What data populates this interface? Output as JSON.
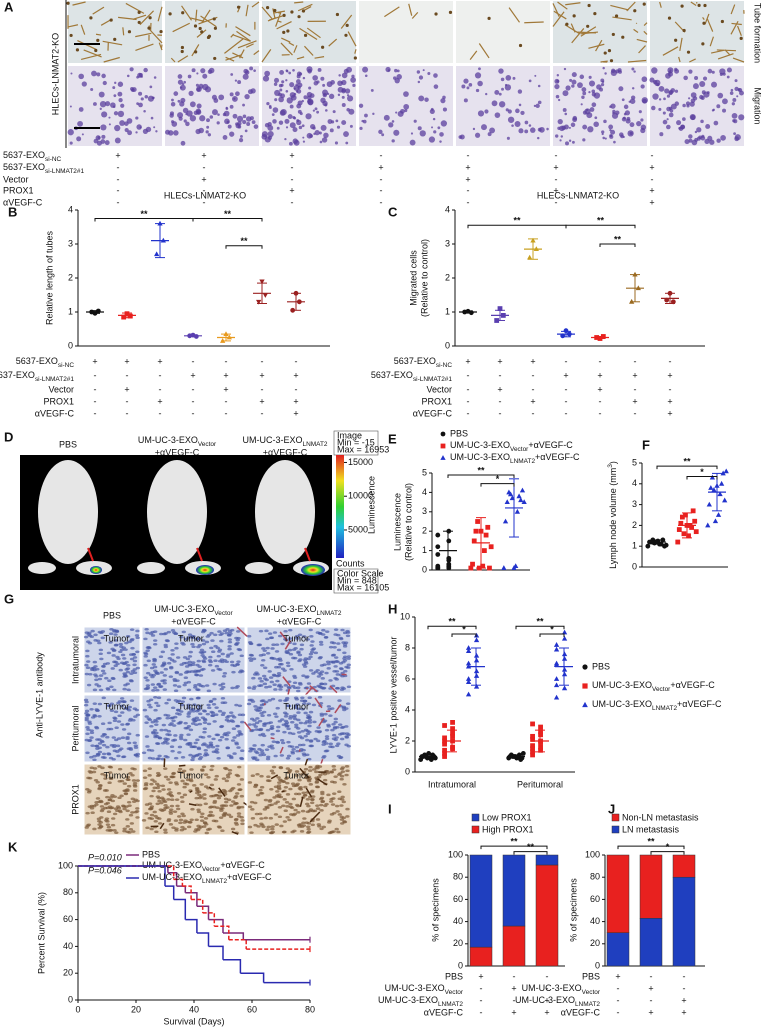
{
  "panel_a": {
    "label": "A",
    "side_label": "HLECs-LNMAT2-KO",
    "row_labels": [
      "Tube formation",
      "Migration"
    ],
    "conditions": {
      "rows": [
        {
          "text": "5637-EXO",
          "sub": "si-NC"
        },
        {
          "text": "5637-EXO",
          "sub": "si-LNMAT2#1"
        },
        "Vector",
        "PROX1",
        "αVEGF-C"
      ],
      "signs": [
        [
          "+",
          "+",
          "+",
          "-",
          "-",
          "-",
          "-"
        ],
        [
          "-",
          "-",
          "-",
          "+",
          "+",
          "+",
          "+"
        ],
        [
          "-",
          "+",
          "-",
          "-",
          "+",
          "-",
          "-"
        ],
        [
          "-",
          "-",
          "+",
          "-",
          "-",
          "+",
          "+"
        ],
        [
          "-",
          "-",
          "-",
          "-",
          "-",
          "-",
          "+"
        ]
      ]
    }
  },
  "panel_d": {
    "label": "D",
    "groups": [
      [
        "PBS"
      ],
      [
        {
          "text": "UM-UC-3-EXO",
          "sub": "Vector"
        },
        "+αVEGF-C"
      ],
      [
        {
          "text": "UM-UC-3-EXO",
          "sub": "LNMAT2"
        },
        "+αVEGF-C"
      ]
    ],
    "image_info": [
      "Image",
      "Min = -15",
      "Max = 16953"
    ],
    "scale_title": "Luminescence",
    "scale_ticks": [
      5000,
      10000,
      15000
    ],
    "counts": "Counts",
    "color_scale_title": "Color Scale",
    "scale_min": {
      "value": 848,
      "label": "Min = 848"
    },
    "scale_max": {
      "value": 16105,
      "label": "Max = 16105"
    }
  },
  "panel_g": {
    "label": "G",
    "groups": [
      [
        "PBS"
      ],
      [
        {
          "text": "UM-UC-3-EXO",
          "sub": "Vector"
        },
        "+αVEGF-C"
      ],
      [
        {
          "text": "UM-UC-3-EXO",
          "sub": "LNMAT2"
        },
        "+αVEGF-C"
      ]
    ],
    "antibody": "Anti-LYVE-1 antibody",
    "rows": [
      "Intratumoral",
      "Peritumoral",
      "PROX1"
    ],
    "region": "Tumor"
  },
  "chart_data": [
    {
      "type": "dot",
      "label": "B",
      "title": "HLECs-LNMAT2-KO",
      "ylabel": [
        "Relative length of tubes"
      ],
      "ylim": [
        0,
        4
      ],
      "yticks": [
        0,
        1,
        2,
        3,
        4
      ],
      "groups": [
        {
          "color": "#111111",
          "marker": "circle",
          "values": [
            1.0,
            0.96,
            1.03
          ],
          "mean": 1.0,
          "sd": 0.04
        },
        {
          "color": "#e8211f",
          "marker": "square",
          "values": [
            0.85,
            0.95,
            0.88
          ],
          "mean": 0.9,
          "sd": 0.07
        },
        {
          "color": "#2233cc",
          "marker": "triangle",
          "values": [
            2.7,
            3.6,
            3.1
          ],
          "mean": 3.1,
          "sd": 0.5
        },
        {
          "color": "#5a3fb0",
          "marker": "circle",
          "values": [
            0.3,
            0.32,
            0.28
          ],
          "mean": 0.3,
          "sd": 0.02
        },
        {
          "color": "#e89a1f",
          "marker": "triangle",
          "values": [
            0.15,
            0.35,
            0.25
          ],
          "mean": 0.25,
          "sd": 0.1
        },
        {
          "color": "#9b2020",
          "marker": "tri-down",
          "values": [
            1.3,
            1.9,
            1.5
          ],
          "mean": 1.55,
          "sd": 0.3
        },
        {
          "color": "#9b2020",
          "marker": "circle",
          "values": [
            1.05,
            1.55,
            1.3
          ],
          "mean": 1.3,
          "sd": 0.25
        }
      ],
      "significance": [
        "**",
        "**",
        "**"
      ],
      "conditions": {
        "rows": [
          {
            "text": "5637-EXO",
            "sub": "si-NC"
          },
          {
            "text": "5637-EXO",
            "sub": "si-LNMAT2#1"
          },
          "Vector",
          "PROX1",
          "αVEGF-C"
        ],
        "signs": [
          [
            "+",
            "+",
            "+",
            "-",
            "-",
            "-",
            "-"
          ],
          [
            "-",
            "-",
            "-",
            "+",
            "+",
            "+",
            "+"
          ],
          [
            "-",
            "+",
            "-",
            "-",
            "+",
            "-",
            "-"
          ],
          [
            "-",
            "-",
            "+",
            "-",
            "-",
            "+",
            "+"
          ],
          [
            "-",
            "-",
            "-",
            "-",
            "-",
            "-",
            "+"
          ]
        ]
      }
    },
    {
      "type": "dot",
      "label": "C",
      "title": "HLECs-LNMAT2-KO",
      "ylabel": [
        "Migrated cells",
        "(Relative to control)"
      ],
      "ylim": [
        0,
        4
      ],
      "yticks": [
        0,
        1,
        2,
        3,
        4
      ],
      "groups": [
        {
          "color": "#111111",
          "marker": "circle",
          "values": [
            1.0,
            1.02,
            0.98
          ],
          "mean": 1.0,
          "sd": 0.03
        },
        {
          "color": "#5a3fb0",
          "marker": "square",
          "values": [
            0.75,
            1.1,
            0.9
          ],
          "mean": 0.9,
          "sd": 0.15
        },
        {
          "color": "#c8a020",
          "marker": "triangle",
          "values": [
            2.6,
            3.1,
            2.85
          ],
          "mean": 2.85,
          "sd": 0.3
        },
        {
          "color": "#2233cc",
          "marker": "circle",
          "values": [
            0.3,
            0.45,
            0.35
          ],
          "mean": 0.35,
          "sd": 0.08
        },
        {
          "color": "#e8211f",
          "marker": "square",
          "values": [
            0.25,
            0.22,
            0.28
          ],
          "mean": 0.25,
          "sd": 0.03
        },
        {
          "color": "#9b6a20",
          "marker": "triangle",
          "values": [
            1.3,
            2.1,
            1.7
          ],
          "mean": 1.7,
          "sd": 0.4
        },
        {
          "color": "#9b2020",
          "marker": "circle",
          "values": [
            1.35,
            1.55,
            1.3
          ],
          "mean": 1.4,
          "sd": 0.15
        }
      ],
      "significance": [
        "**",
        "**",
        "**"
      ],
      "conditions": {
        "rows": [
          {
            "text": "5637-EXO",
            "sub": "si-NC"
          },
          {
            "text": "5637-EXO",
            "sub": "si-LNMAT2#1"
          },
          "Vector",
          "PROX1",
          "αVEGF-C"
        ],
        "signs": [
          [
            "+",
            "+",
            "+",
            "-",
            "-",
            "-",
            "-"
          ],
          [
            "-",
            "-",
            "-",
            "+",
            "+",
            "+",
            "+"
          ],
          [
            "-",
            "+",
            "-",
            "-",
            "+",
            "-",
            "-"
          ],
          [
            "-",
            "-",
            "+",
            "-",
            "-",
            "+",
            "+"
          ],
          [
            "-",
            "-",
            "-",
            "-",
            "-",
            "-",
            "+"
          ]
        ]
      }
    },
    {
      "type": "dot",
      "label": "E",
      "ylabel": [
        "Luminescence",
        "(Relative to control)"
      ],
      "ylim": [
        0,
        5
      ],
      "yticks": [
        0,
        1,
        2,
        3,
        4,
        5
      ],
      "groups": [
        {
          "name": "PBS",
          "color": "#111111",
          "marker": "circle",
          "values": [
            0.1,
            0.2,
            0.1,
            0.5,
            0.8,
            1.5,
            1.8,
            2.0,
            0.1,
            0.3,
            1.2,
            0.6,
            0.2,
            0.1
          ],
          "mean": 1.0,
          "sd": 1.0
        },
        {
          "name": {
            "text": "UM-UC-3-EXO",
            "sub": "Vector",
            "suffix": "+αVEGF-C"
          },
          "color": "#e8211f",
          "marker": "square",
          "values": [
            0.1,
            0.2,
            0.3,
            1.0,
            1.5,
            1.8,
            2.0,
            2.2,
            2.5,
            0.1,
            0.1,
            1.2,
            2.0
          ],
          "mean": 1.4,
          "sd": 1.3
        },
        {
          "name": {
            "text": "UM-UC-3-EXO",
            "sub": "LNMAT2",
            "suffix": "+αVEGF-C"
          },
          "color": "#2233cc",
          "marker": "triangle",
          "values": [
            0.1,
            0.2,
            2.5,
            3.0,
            3.5,
            3.8,
            4.0,
            3.6,
            3.9,
            4.1,
            3.7,
            3.5,
            0.1
          ],
          "mean": 3.2,
          "sd": 1.5
        }
      ],
      "significance": [
        "**",
        "*"
      ]
    },
    {
      "type": "dot",
      "label": "F",
      "ylabel": [
        {
          "text": "Lymph node volume (mm",
          "sup": "3",
          "suffix": ")"
        }
      ],
      "ylim": [
        0,
        5
      ],
      "yticks": [
        0,
        1,
        2,
        3,
        4,
        5
      ],
      "groups": [
        {
          "color": "#111111",
          "marker": "circle",
          "values": [
            1.0,
            1.1,
            1.2,
            1.3,
            1.15,
            1.05,
            1.25,
            1.2,
            1.1,
            1.3,
            1.0,
            1.2
          ],
          "mean": 1.2,
          "sd": 0.1
        },
        {
          "color": "#e8211f",
          "marker": "square",
          "values": [
            1.2,
            1.5,
            1.8,
            2.0,
            2.1,
            1.9,
            2.4,
            2.7,
            1.6,
            2.2,
            2.5,
            1.7,
            2.0
          ],
          "mean": 2.0,
          "sd": 0.6
        },
        {
          "color": "#2233cc",
          "marker": "triangle",
          "values": [
            2.0,
            2.5,
            3.0,
            3.5,
            3.8,
            4.0,
            4.3,
            4.5,
            3.7,
            3.2,
            2.2,
            4.6,
            3.9
          ],
          "mean": 3.6,
          "sd": 0.9
        }
      ],
      "significance": [
        "**",
        "*"
      ]
    },
    {
      "type": "cluster",
      "label": "H",
      "ylabel": [
        "LYVE-1 positive vessel/tumor"
      ],
      "ylim": [
        0,
        10
      ],
      "yticks": [
        0,
        2,
        4,
        6,
        8,
        10
      ],
      "categories": [
        "Intratumoral",
        "Peritumoral"
      ],
      "series": [
        {
          "name": "PBS",
          "color": "#111111",
          "marker": "circle",
          "values": [
            [
              0.8,
              0.9,
              1.0,
              1.1,
              1.0,
              0.9,
              1.2,
              1.0,
              0.8,
              1.1,
              1.0,
              0.9
            ],
            [
              0.9,
              1.0,
              1.1,
              0.8,
              1.0,
              1.2,
              0.9,
              1.0,
              1.1,
              1.0,
              0.9,
              1.0
            ]
          ],
          "mean": [
            1.0,
            1.0
          ],
          "sd": [
            0.1,
            0.1
          ]
        },
        {
          "name": {
            "text": "UM-UC-3-EXO",
            "sub": "Vector",
            "suffix": "+αVEGF-C"
          },
          "color": "#e8211f",
          "marker": "square",
          "values": [
            [
              1.0,
              1.5,
              1.8,
              2.0,
              2.2,
              2.5,
              1.2,
              2.8,
              3.0,
              1.6,
              2.0,
              2.3,
              1.4,
              3.2
            ],
            [
              1.1,
              1.4,
              1.7,
              2.0,
              2.3,
              2.6,
              1.3,
              2.9,
              3.1,
              1.6,
              2.1,
              2.4,
              1.5,
              1.9
            ]
          ],
          "mean": [
            2.0,
            2.0
          ],
          "sd": [
            0.7,
            0.7
          ]
        },
        {
          "name": {
            "text": "UM-UC-3-EXO",
            "sub": "LNMAT2",
            "suffix": "+αVEGF-C"
          },
          "color": "#2233cc",
          "marker": "triangle",
          "values": [
            [
              5.0,
              5.5,
              6.0,
              6.5,
              7.0,
              7.5,
              8.0,
              8.5,
              6.8,
              7.2,
              5.8,
              6.2,
              7.8,
              8.8
            ],
            [
              4.8,
              5.4,
              6.0,
              6.6,
              7.0,
              7.6,
              8.2,
              8.6,
              6.9,
              7.3,
              5.6,
              6.3,
              7.9,
              9.0
            ]
          ],
          "mean": [
            6.8,
            6.8
          ],
          "sd": [
            1.2,
            1.2
          ]
        }
      ],
      "significance": [
        "**",
        "*",
        "**",
        "*"
      ]
    },
    {
      "type": "stacked",
      "label": "I",
      "ylabel": [
        "% of specimens"
      ],
      "ylim": [
        0,
        100
      ],
      "yticks": [
        0,
        20,
        40,
        60,
        80,
        100
      ],
      "series": [
        {
          "name": "High PROX1",
          "color": "#e8211f",
          "values": [
            17,
            36,
            91
          ]
        },
        {
          "name": "Low PROX1",
          "color": "#1f3fbf",
          "values": [
            83,
            64,
            9
          ]
        }
      ],
      "significance": [
        "**",
        "**"
      ],
      "conditions": {
        "rows": [
          "PBS",
          {
            "text": "UM-UC-3-EXO",
            "sub": "Vector"
          },
          {
            "text": "UM-UC-3-EXO",
            "sub": "LNMAT2"
          },
          "αVEGF-C"
        ],
        "signs": [
          [
            "+",
            "-",
            "-"
          ],
          [
            "-",
            "+",
            "-"
          ],
          [
            "-",
            "-",
            "+"
          ],
          [
            "-",
            "+",
            "+"
          ]
        ]
      }
    },
    {
      "type": "stacked",
      "label": "J",
      "ylabel": [
        "% of specimens"
      ],
      "ylim": [
        0,
        100
      ],
      "yticks": [
        0,
        20,
        40,
        60,
        80,
        100
      ],
      "series": [
        {
          "name": "LN metastasis",
          "color": "#1f3fbf",
          "values": [
            30,
            43,
            80
          ]
        },
        {
          "name": "Non-LN metastasis",
          "color": "#e8211f",
          "values": [
            70,
            57,
            20
          ]
        }
      ],
      "significance": [
        "**",
        "*"
      ],
      "conditions": {
        "rows": [
          "PBS",
          {
            "text": "UM-UC-3-EXO",
            "sub": "Vector"
          },
          {
            "text": "UM-UC-3-EXO",
            "sub": "LNMAT2"
          },
          "αVEGF-C"
        ],
        "signs": [
          [
            "+",
            "-",
            "-"
          ],
          [
            "-",
            "+",
            "-"
          ],
          [
            "-",
            "-",
            "+"
          ],
          [
            "-",
            "+",
            "+"
          ]
        ]
      }
    },
    {
      "type": "line",
      "label": "K",
      "xlabel": "Survival (Days)",
      "ylabel": [
        "Percent Survival (%)"
      ],
      "xlim": [
        0,
        80
      ],
      "xticks": [
        0,
        20,
        40,
        60,
        80
      ],
      "ylim": [
        0,
        100
      ],
      "yticks": [
        0,
        20,
        40,
        60,
        80,
        100
      ],
      "series": [
        {
          "name": "PBS",
          "color": "#7a2a7a",
          "line_style": "solid",
          "x": [
            0,
            31,
            34,
            37,
            41,
            45,
            50,
            57,
            80
          ],
          "y": [
            100,
            95,
            85,
            80,
            70,
            60,
            50,
            45,
            45
          ]
        },
        {
          "name": {
            "text": "UM-UC-3-EXO",
            "sub": "Vector",
            "suffix": "+αVEGF-C"
          },
          "color": "#e8211f",
          "line_style": "dashed",
          "x": [
            0,
            33,
            36,
            39,
            43,
            47,
            52,
            58,
            80
          ],
          "y": [
            100,
            90,
            85,
            75,
            65,
            55,
            45,
            38,
            38
          ]
        },
        {
          "name": {
            "text": "UM-UC-3-EXO",
            "sub": "LNMAT2",
            "suffix": "+αVEGF-C"
          },
          "color": "#2a2ab0",
          "line_style": "solid",
          "x": [
            0,
            30,
            33,
            37,
            41,
            45,
            50,
            56,
            64,
            80
          ],
          "y": [
            100,
            85,
            75,
            60,
            50,
            40,
            30,
            20,
            13,
            13
          ]
        }
      ],
      "annotations": [
        "P=0.010",
        "P=0.046"
      ]
    }
  ]
}
